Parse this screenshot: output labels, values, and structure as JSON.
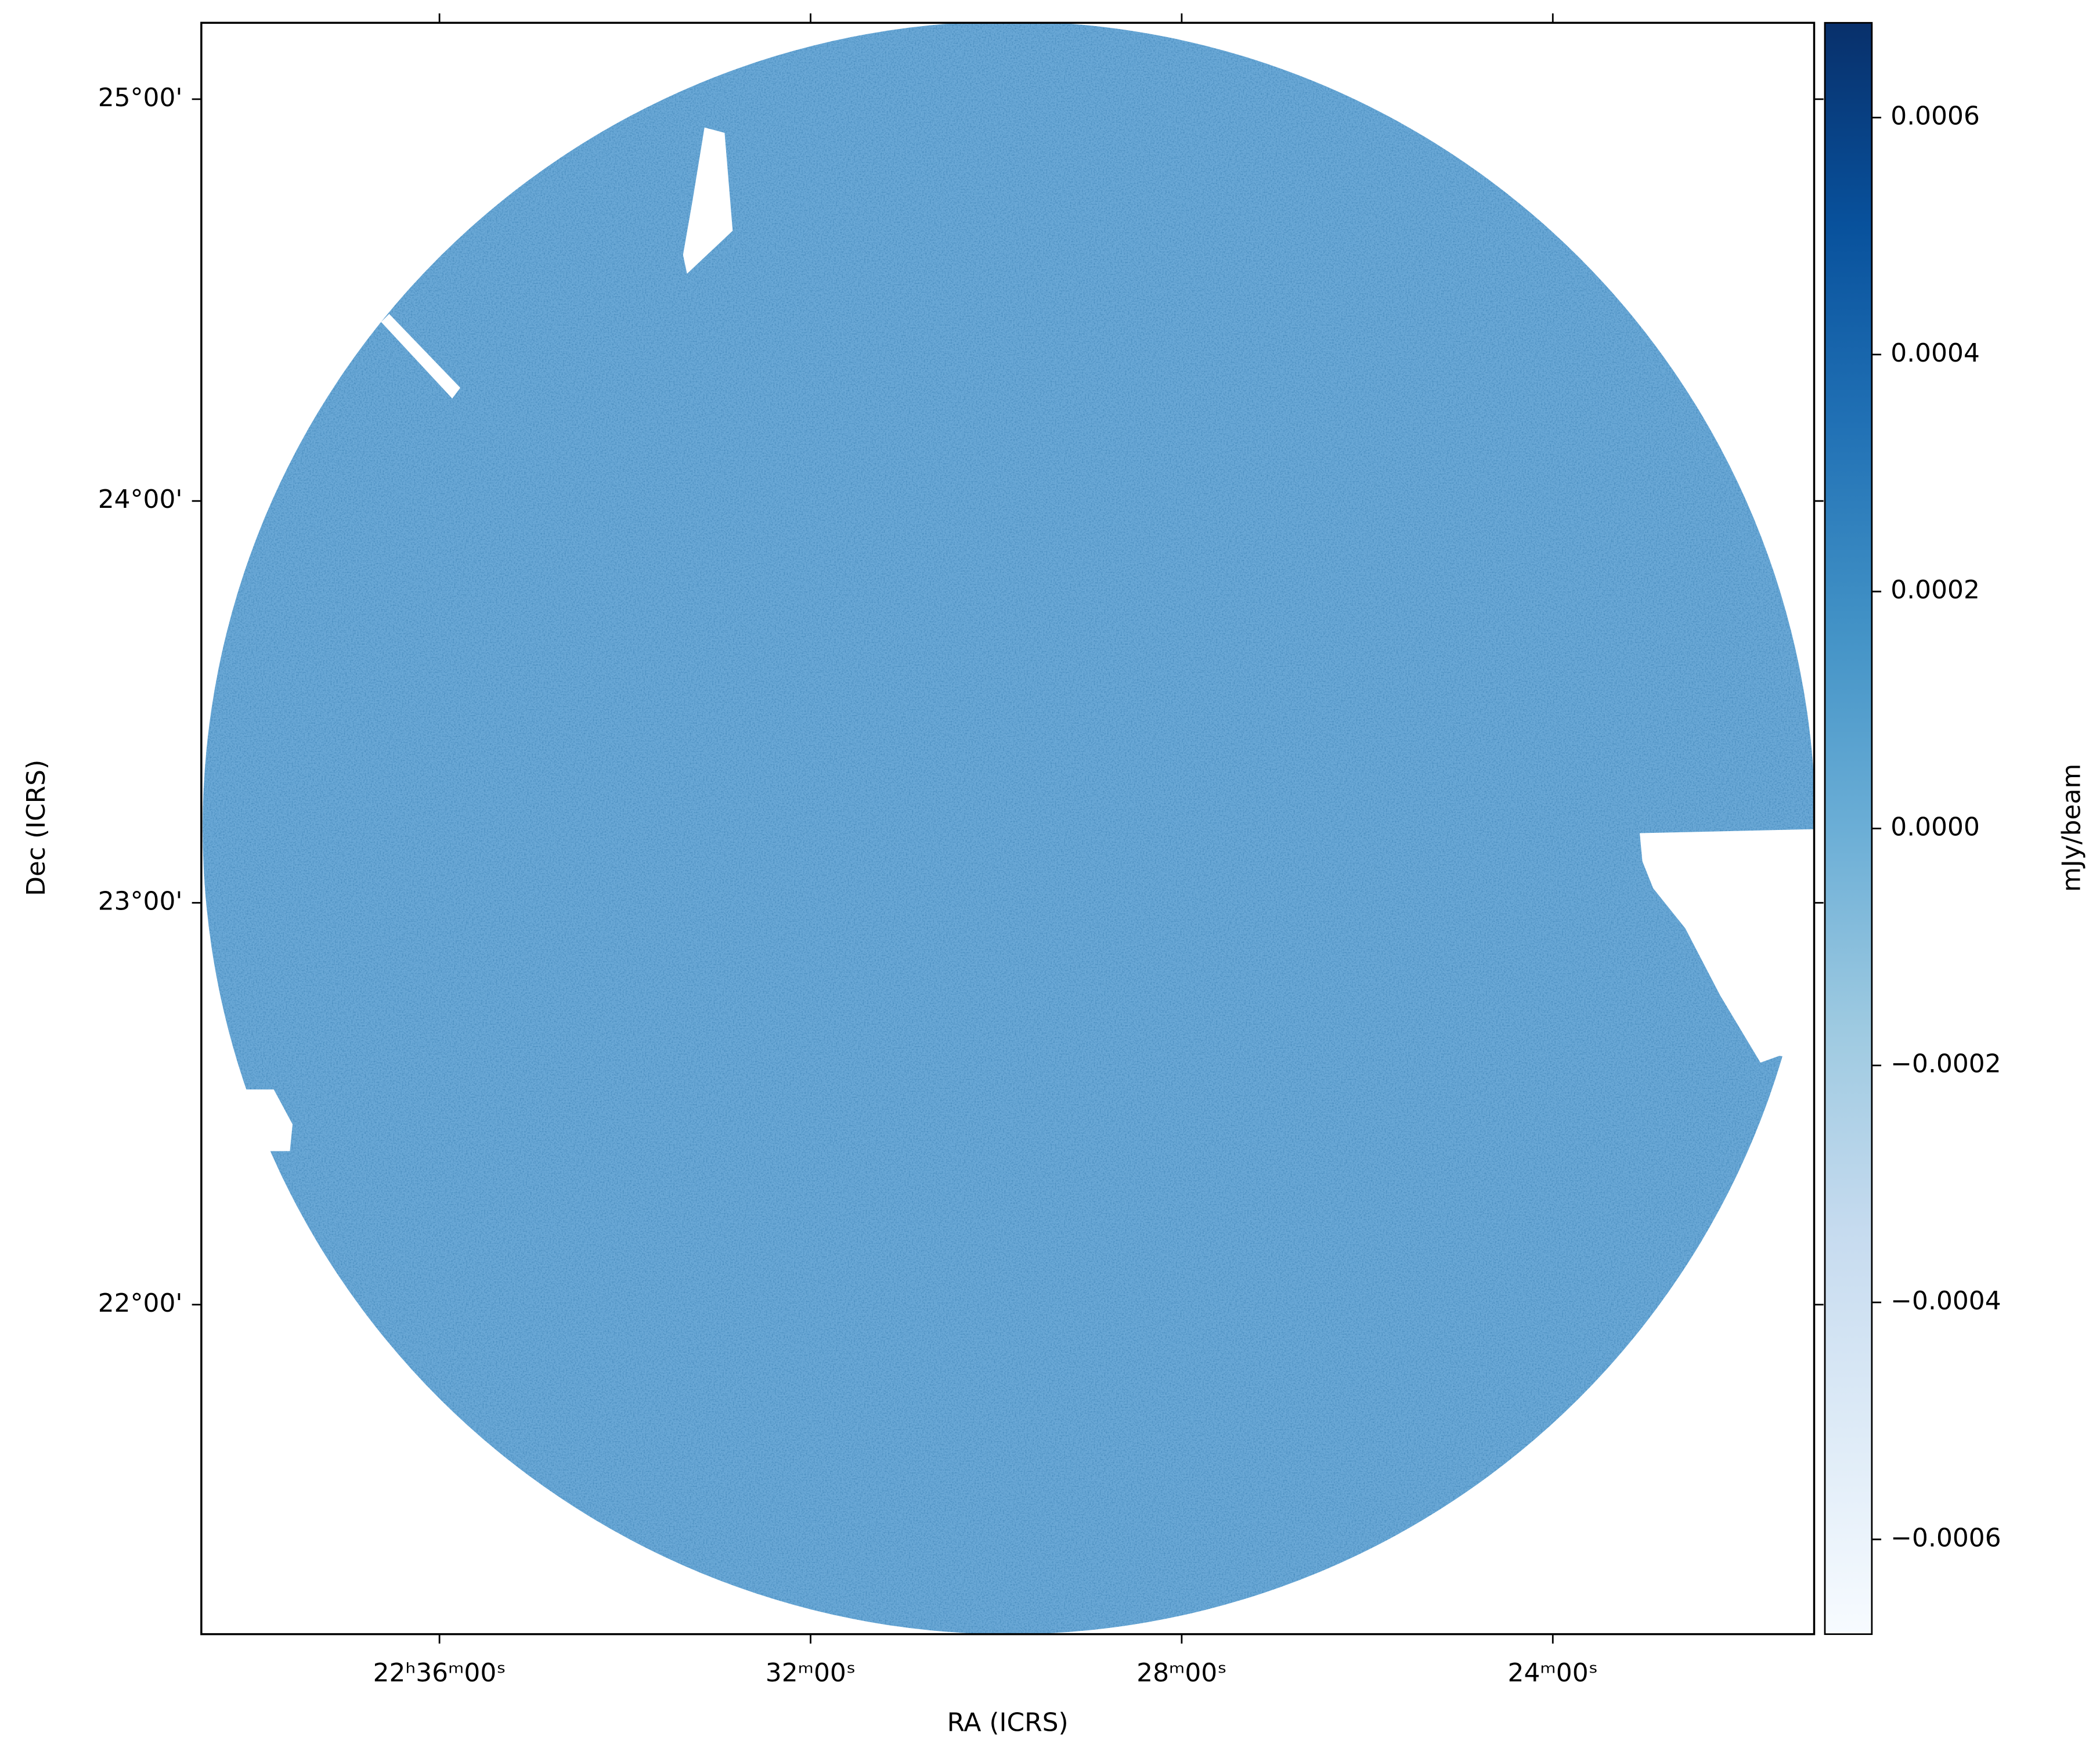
{
  "chart_data": {
    "type": "image",
    "xlabel": "RA (ICRS)",
    "ylabel": "Dec (ICRS)",
    "xlim": [
      81514,
      80471
    ],
    "ylim": [
      21.18,
      25.19
    ],
    "xticks": [
      {
        "value": 81360,
        "label": "22ʰ36ᵐ00ˢ"
      },
      {
        "value": 81120,
        "label": "32ᵐ00ˢ"
      },
      {
        "value": 80880,
        "label": "28ᵐ00ˢ"
      },
      {
        "value": 80640,
        "label": "24ᵐ00ˢ"
      }
    ],
    "yticks": [
      {
        "value": 25,
        "label": "25°00'"
      },
      {
        "value": 24,
        "label": "24°00'"
      },
      {
        "value": 23,
        "label": "23°00'"
      },
      {
        "value": 22,
        "label": "22°00'"
      }
    ],
    "colormap": "Blues",
    "colorbar": {
      "label": "mJy/beam",
      "lim": [
        -0.00068,
        0.00068
      ],
      "ticks": [
        {
          "value": -0.0006,
          "label": "−0.0006"
        },
        {
          "value": -0.0004,
          "label": "−0.0004"
        },
        {
          "value": -0.0002,
          "label": "−0.0002"
        },
        {
          "value": 0,
          "label": "0.0000"
        },
        0.0002,
        0.0004,
        0.0006
      ]
    }
  }
}
